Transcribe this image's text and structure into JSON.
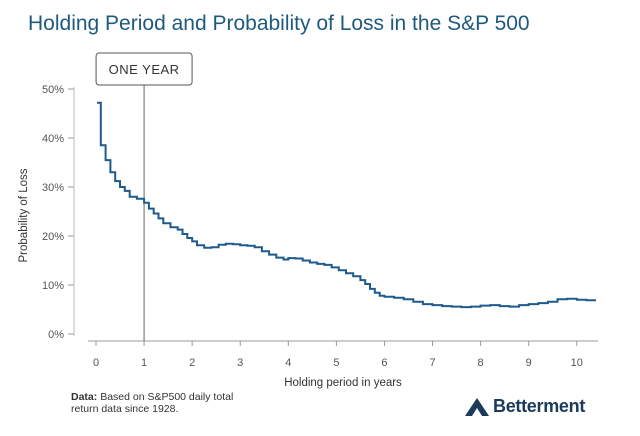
{
  "title": "Holding Period and Probability of Loss in the S&P 500",
  "footnote": {
    "label": "Data:",
    "text": "Based on S&P500 daily total return data since 1928."
  },
  "brand": {
    "name": "Betterment",
    "icon": "betterment-logo-icon",
    "color": "#1b3a5c"
  },
  "chart_data": {
    "type": "line",
    "step": true,
    "xlabel": "Holding period in years",
    "ylabel": "Probability of Loss",
    "xlim": [
      0,
      10.4
    ],
    "ylim": [
      0,
      50
    ],
    "xticks": [
      0,
      1,
      2,
      3,
      4,
      5,
      6,
      7,
      8,
      9,
      10
    ],
    "yticks": [
      {
        "value": 0,
        "label": "0%"
      },
      {
        "value": 10,
        "label": "10%"
      },
      {
        "value": 20,
        "label": "20%"
      },
      {
        "value": 30,
        "label": "30%"
      },
      {
        "value": 40,
        "label": "40%"
      },
      {
        "value": 50,
        "label": "50%"
      }
    ],
    "grid": false,
    "line_color": "#1e5a8c",
    "annotation": {
      "label": "ONE YEAR",
      "x": 1
    },
    "series": [
      {
        "name": "Probability of Loss",
        "points": [
          [
            0.02,
            47.2
          ],
          [
            0.1,
            38.5
          ],
          [
            0.2,
            35.5
          ],
          [
            0.3,
            33.0
          ],
          [
            0.4,
            31.2
          ],
          [
            0.5,
            30.0
          ],
          [
            0.6,
            29.2
          ],
          [
            0.7,
            28.0
          ],
          [
            0.85,
            27.6
          ],
          [
            1.0,
            26.8
          ],
          [
            1.1,
            25.6
          ],
          [
            1.2,
            24.6
          ],
          [
            1.3,
            23.6
          ],
          [
            1.4,
            22.6
          ],
          [
            1.55,
            21.8
          ],
          [
            1.7,
            21.3
          ],
          [
            1.8,
            20.4
          ],
          [
            1.9,
            19.6
          ],
          [
            2.0,
            18.9
          ],
          [
            2.1,
            18.1
          ],
          [
            2.25,
            17.6
          ],
          [
            2.4,
            17.7
          ],
          [
            2.55,
            18.2
          ],
          [
            2.7,
            18.4
          ],
          [
            2.85,
            18.3
          ],
          [
            3.0,
            18.1
          ],
          [
            3.15,
            18.0
          ],
          [
            3.3,
            17.7
          ],
          [
            3.45,
            16.9
          ],
          [
            3.6,
            16.2
          ],
          [
            3.75,
            15.6
          ],
          [
            3.9,
            15.2
          ],
          [
            4.0,
            15.5
          ],
          [
            4.15,
            15.4
          ],
          [
            4.3,
            15.0
          ],
          [
            4.45,
            14.6
          ],
          [
            4.6,
            14.3
          ],
          [
            4.75,
            14.1
          ],
          [
            4.9,
            13.6
          ],
          [
            5.05,
            13.0
          ],
          [
            5.2,
            12.4
          ],
          [
            5.35,
            11.8
          ],
          [
            5.5,
            11.0
          ],
          [
            5.6,
            10.2
          ],
          [
            5.7,
            9.2
          ],
          [
            5.8,
            8.4
          ],
          [
            5.9,
            7.8
          ],
          [
            6.0,
            7.6
          ],
          [
            6.2,
            7.4
          ],
          [
            6.4,
            7.1
          ],
          [
            6.6,
            6.6
          ],
          [
            6.8,
            6.1
          ],
          [
            7.0,
            5.9
          ],
          [
            7.2,
            5.7
          ],
          [
            7.4,
            5.6
          ],
          [
            7.6,
            5.5
          ],
          [
            7.8,
            5.6
          ],
          [
            8.0,
            5.8
          ],
          [
            8.2,
            5.9
          ],
          [
            8.4,
            5.7
          ],
          [
            8.6,
            5.6
          ],
          [
            8.8,
            5.9
          ],
          [
            9.0,
            6.1
          ],
          [
            9.2,
            6.3
          ],
          [
            9.4,
            6.6
          ],
          [
            9.6,
            7.1
          ],
          [
            9.8,
            7.2
          ],
          [
            10.0,
            7.0
          ],
          [
            10.2,
            6.9
          ],
          [
            10.4,
            6.9
          ]
        ]
      }
    ]
  }
}
